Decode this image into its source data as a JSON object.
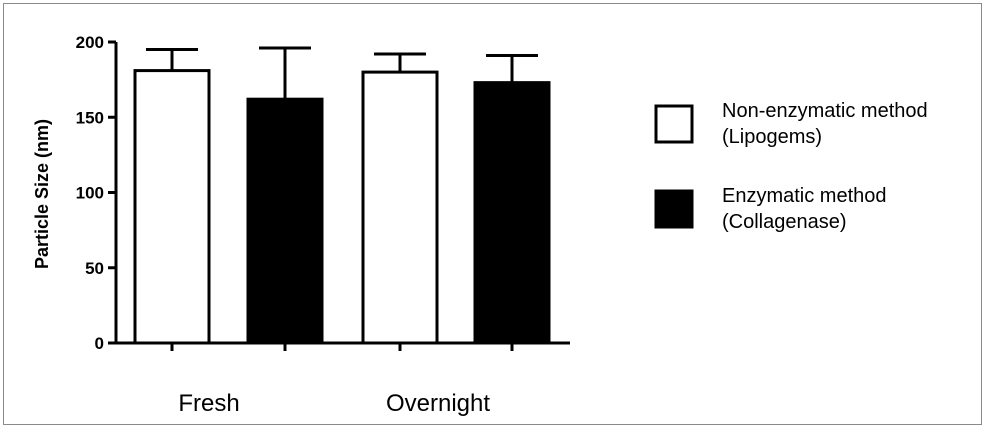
{
  "chart_data": {
    "type": "bar",
    "title": "",
    "ylabel": "Particle Size (nm)",
    "xlabel": "",
    "ylim": [
      0,
      200
    ],
    "yticks": [
      0,
      50,
      100,
      150,
      200
    ],
    "groups": [
      "Fresh",
      "Overnight"
    ],
    "series": [
      {
        "name": "Non-enzymatic method (Lipogems)",
        "legend_lines": [
          "Non-enzymatic method",
          "(Lipogems)"
        ],
        "fill": "#ffffff",
        "values": [
          181,
          180
        ],
        "error_plus": [
          14,
          12
        ]
      },
      {
        "name": "Enzymatic method (Collagenase)",
        "legend_lines": [
          "Enzymatic method",
          "(Collagenase)"
        ],
        "fill": "#000000",
        "values": [
          162,
          173
        ],
        "error_plus": [
          34,
          18
        ]
      }
    ],
    "legend_position": "right",
    "grid": false,
    "colors": {
      "axis": "#000000",
      "bar_edge": "#000000"
    }
  }
}
